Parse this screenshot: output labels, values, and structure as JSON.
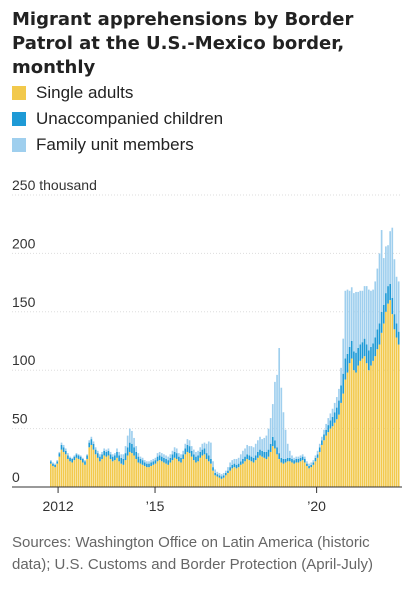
{
  "title": "Migrant apprehensions by Border Patrol at the U.S.-Mexico border, monthly",
  "source": "Sources: Washington Office on Latin America (historic data); U.S. Customs and Border Protection (April-July)",
  "colors": {
    "single": "#f2c94c",
    "unaccompanied": "#1e9ad6",
    "family": "#9fcfee",
    "grid": "#dddddd",
    "axis": "#333333"
  },
  "legend": [
    {
      "label": "Single adults",
      "key": "single"
    },
    {
      "label": "Unaccompanied children",
      "key": "unaccompanied"
    },
    {
      "label": "Family unit members",
      "key": "family"
    }
  ],
  "chart_data": {
    "type": "bar",
    "stacked": true,
    "unit_label": "250 thousand",
    "y_ticks": [
      {
        "value": 250,
        "label": "250 thousand"
      },
      {
        "value": 200,
        "label": "200"
      },
      {
        "value": 150,
        "label": "150"
      },
      {
        "value": 100,
        "label": "100"
      },
      {
        "value": 50,
        "label": "50"
      },
      {
        "value": 0,
        "label": "0"
      }
    ],
    "ylim": [
      0,
      250
    ],
    "x_ticks": [
      {
        "value": 2012,
        "label": "2012"
      },
      {
        "value": 2015,
        "label": "’15"
      },
      {
        "value": 2020,
        "label": "’20"
      }
    ],
    "x_range": [
      2011.75,
      2022.58
    ],
    "x_start": 2011.75,
    "grid": true,
    "series": [
      {
        "name": "Single adults",
        "values": [
          20,
          18,
          17,
          20,
          26,
          32,
          30,
          28,
          24,
          22,
          21,
          23,
          25,
          24,
          23,
          21,
          19,
          24,
          34,
          36,
          32,
          28,
          25,
          22,
          24,
          27,
          26,
          27,
          24,
          22,
          23,
          25,
          22,
          20,
          19,
          23,
          27,
          30,
          29,
          27,
          24,
          21,
          20,
          19,
          18,
          17,
          17,
          18,
          19,
          20,
          22,
          23,
          22,
          21,
          20,
          19,
          21,
          23,
          25,
          24,
          22,
          21,
          24,
          28,
          30,
          29,
          26,
          23,
          21,
          22,
          25,
          27,
          28,
          24,
          22,
          20,
          14,
          10,
          9,
          8,
          7,
          8,
          10,
          12,
          14,
          16,
          17,
          16,
          17,
          19,
          20,
          22,
          24,
          23,
          22,
          21,
          23,
          25,
          27,
          26,
          25,
          24,
          26,
          30,
          35,
          33,
          28,
          24,
          21,
          20,
          21,
          22,
          22,
          21,
          20,
          21,
          21,
          22,
          23,
          21,
          18,
          16,
          17,
          19,
          22,
          25,
          30,
          36,
          40,
          44,
          47,
          50,
          52,
          55,
          58,
          62,
          72,
          80,
          92,
          98,
          106,
          110,
          100,
          98,
          104,
          108,
          110,
          112,
          106,
          100,
          104,
          108,
          112,
          118,
          122,
          132,
          140,
          150,
          157,
          160,
          148,
          135,
          128,
          122
        ]
      },
      {
        "name": "Unaccompanied children",
        "values": [
          2,
          2,
          2,
          2,
          3,
          4,
          4,
          3,
          3,
          3,
          3,
          3,
          3,
          3,
          3,
          3,
          3,
          3,
          4,
          5,
          5,
          4,
          4,
          4,
          4,
          4,
          4,
          4,
          4,
          4,
          4,
          5,
          5,
          5,
          5,
          6,
          7,
          8,
          8,
          7,
          6,
          5,
          4,
          4,
          3,
          3,
          3,
          3,
          3,
          3,
          4,
          4,
          4,
          4,
          4,
          4,
          4,
          5,
          5,
          5,
          4,
          4,
          4,
          5,
          6,
          6,
          5,
          5,
          5,
          5,
          5,
          5,
          5,
          5,
          5,
          4,
          3,
          2,
          2,
          2,
          2,
          2,
          2,
          2,
          3,
          3,
          3,
          3,
          3,
          3,
          4,
          4,
          4,
          4,
          4,
          4,
          4,
          5,
          5,
          5,
          5,
          6,
          6,
          7,
          8,
          7,
          6,
          5,
          4,
          4,
          3,
          3,
          3,
          3,
          3,
          3,
          3,
          3,
          3,
          3,
          2,
          2,
          2,
          2,
          3,
          3,
          4,
          4,
          5,
          5,
          6,
          7,
          8,
          9,
          10,
          12,
          15,
          17,
          18,
          16,
          14,
          15,
          16,
          17,
          15,
          14,
          14,
          15,
          16,
          17,
          16,
          15,
          16,
          17,
          18,
          18,
          16,
          16,
          15,
          14,
          14,
          13,
          12,
          11
        ]
      },
      {
        "name": "Family unit members",
        "values": [
          1,
          1,
          1,
          1,
          1,
          2,
          2,
          2,
          2,
          1,
          1,
          1,
          1,
          1,
          1,
          1,
          1,
          1,
          2,
          2,
          2,
          2,
          2,
          2,
          2,
          2,
          2,
          2,
          2,
          2,
          2,
          3,
          3,
          3,
          4,
          6,
          10,
          12,
          11,
          8,
          5,
          3,
          2,
          2,
          2,
          2,
          2,
          2,
          2,
          2,
          3,
          3,
          3,
          3,
          3,
          3,
          3,
          3,
          4,
          4,
          3,
          3,
          3,
          4,
          5,
          5,
          4,
          4,
          4,
          4,
          4,
          5,
          5,
          8,
          12,
          14,
          5,
          3,
          2,
          2,
          2,
          2,
          2,
          3,
          4,
          4,
          4,
          5,
          5,
          6,
          7,
          7,
          8,
          8,
          9,
          9,
          10,
          10,
          11,
          10,
          12,
          14,
          18,
          22,
          28,
          50,
          62,
          90,
          60,
          40,
          25,
          12,
          6,
          3,
          2,
          2,
          2,
          2,
          2,
          2,
          2,
          2,
          2,
          2,
          2,
          3,
          3,
          3,
          4,
          5,
          6,
          6,
          7,
          8,
          9,
          10,
          15,
          30,
          58,
          55,
          48,
          46,
          50,
          52,
          48,
          46,
          44,
          45,
          50,
          52,
          48,
          46,
          48,
          52,
          60,
          70,
          40,
          40,
          35,
          45,
          60,
          47,
          40,
          43
        ]
      }
    ]
  }
}
